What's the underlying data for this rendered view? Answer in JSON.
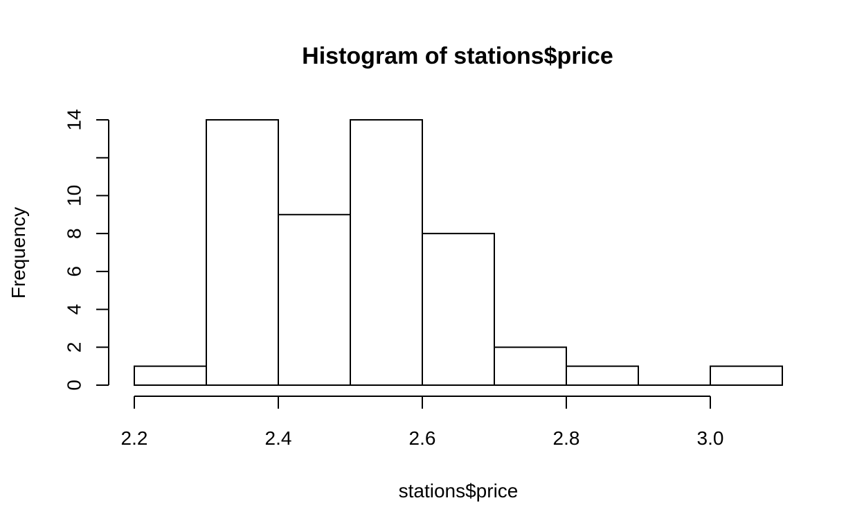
{
  "chart_data": {
    "type": "bar",
    "title": "Histogram of stations$price",
    "xlabel": "stations$price",
    "ylabel": "Frequency",
    "bins": [
      {
        "from": 2.2,
        "to": 2.3,
        "count": 1
      },
      {
        "from": 2.3,
        "to": 2.4,
        "count": 14
      },
      {
        "from": 2.4,
        "to": 2.5,
        "count": 9
      },
      {
        "from": 2.5,
        "to": 2.6,
        "count": 14
      },
      {
        "from": 2.6,
        "to": 2.7,
        "count": 8
      },
      {
        "from": 2.7,
        "to": 2.8,
        "count": 2
      },
      {
        "from": 2.8,
        "to": 2.9,
        "count": 1
      },
      {
        "from": 2.9,
        "to": 3.0,
        "count": 0
      },
      {
        "from": 3.0,
        "to": 3.1,
        "count": 1
      }
    ],
    "xlim": [
      2.2,
      3.1
    ],
    "ylim": [
      0,
      14
    ],
    "x_ticks": [
      2.2,
      2.4,
      2.6,
      2.8,
      3.0
    ],
    "x_tick_labels": [
      "2.2",
      "2.4",
      "2.6",
      "2.8",
      "3.0"
    ],
    "y_ticks": [
      0,
      2,
      4,
      6,
      8,
      10,
      12,
      14
    ],
    "y_tick_labels": [
      "0",
      "2",
      "4",
      "6",
      "8",
      "10",
      "",
      "14"
    ],
    "grid": false,
    "colors": {
      "bar_fill": "#ffffff",
      "bar_stroke": "#000000"
    }
  }
}
